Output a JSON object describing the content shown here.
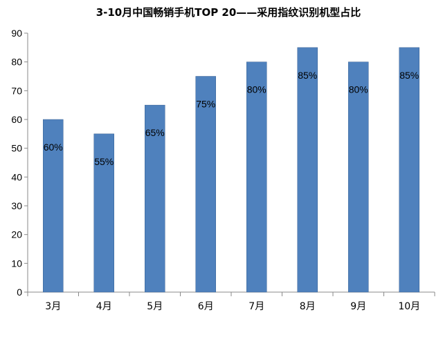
{
  "chart_data": {
    "type": "bar",
    "title": "3-10月中国畅销手机TOP 20——采用指纹识别机型占比",
    "xlabel": "",
    "ylabel": "",
    "categories": [
      "3月",
      "4月",
      "5月",
      "6月",
      "7月",
      "8月",
      "9月",
      "10月"
    ],
    "values": [
      60,
      55,
      65,
      75,
      80,
      85,
      80,
      85
    ],
    "data_labels": [
      "60%",
      "55%",
      "65%",
      "75%",
      "80%",
      "85%",
      "80%",
      "85%"
    ],
    "ylim": [
      0,
      90
    ],
    "yticks": [
      "0",
      "10",
      "20",
      "30",
      "40",
      "50",
      "60",
      "70",
      "80",
      "90"
    ],
    "grid": false,
    "legend": "none",
    "colors": {
      "bar": "#4F81BD",
      "bar_edge": "#3A6294",
      "axis": "#888888"
    }
  }
}
